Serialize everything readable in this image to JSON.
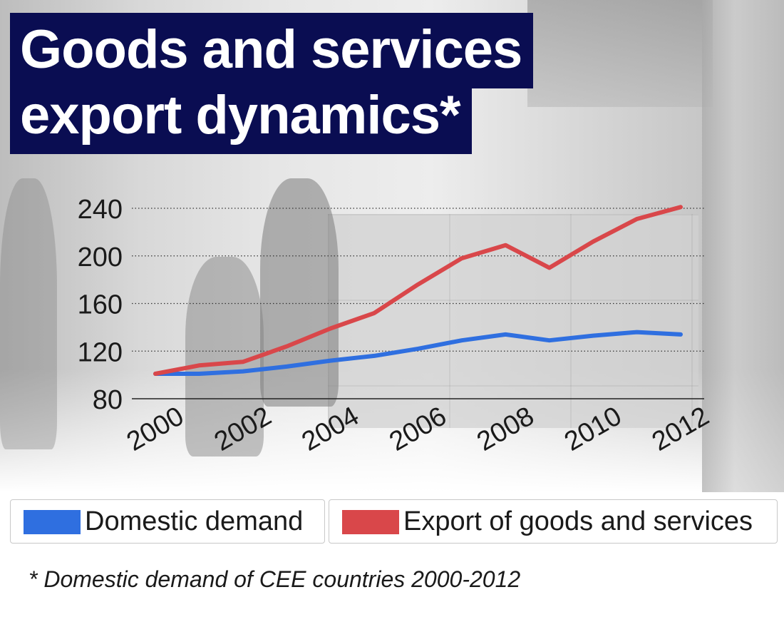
{
  "title": {
    "line1": "Goods and services",
    "line2": "export dynamics*"
  },
  "colors": {
    "title_bg": "#0a0d52",
    "domestic": "#2f6fe0",
    "export": "#d9474a"
  },
  "chart_data": {
    "type": "line",
    "title": "Goods and services export dynamics*",
    "x": [
      2000,
      2001,
      2002,
      2003,
      2004,
      2005,
      2006,
      2007,
      2008,
      2009,
      2010,
      2011,
      2012
    ],
    "x_tick_labels": [
      "2000",
      "2002",
      "2004",
      "2006",
      "2008",
      "2010",
      "2012"
    ],
    "y_tick_labels": [
      "240",
      "200",
      "160",
      "120",
      "80"
    ],
    "ylim": [
      80,
      240
    ],
    "grid": "horizontal dotted",
    "series": [
      {
        "name": "Domestic demand",
        "color": "#2f6fe0",
        "values": [
          101,
          101,
          103,
          107,
          112,
          116,
          122,
          129,
          134,
          129,
          133,
          136,
          134
        ]
      },
      {
        "name": "Export of goods and services",
        "color": "#d9474a",
        "values": [
          101,
          108,
          111,
          124,
          139,
          152,
          176,
          198,
          209,
          190,
          212,
          231,
          241
        ]
      }
    ]
  },
  "legend": {
    "domestic_label": "Domestic demand",
    "export_label": "Export of goods and services"
  },
  "footnote": "* Domestic demand of CEE countries 2000-2012"
}
